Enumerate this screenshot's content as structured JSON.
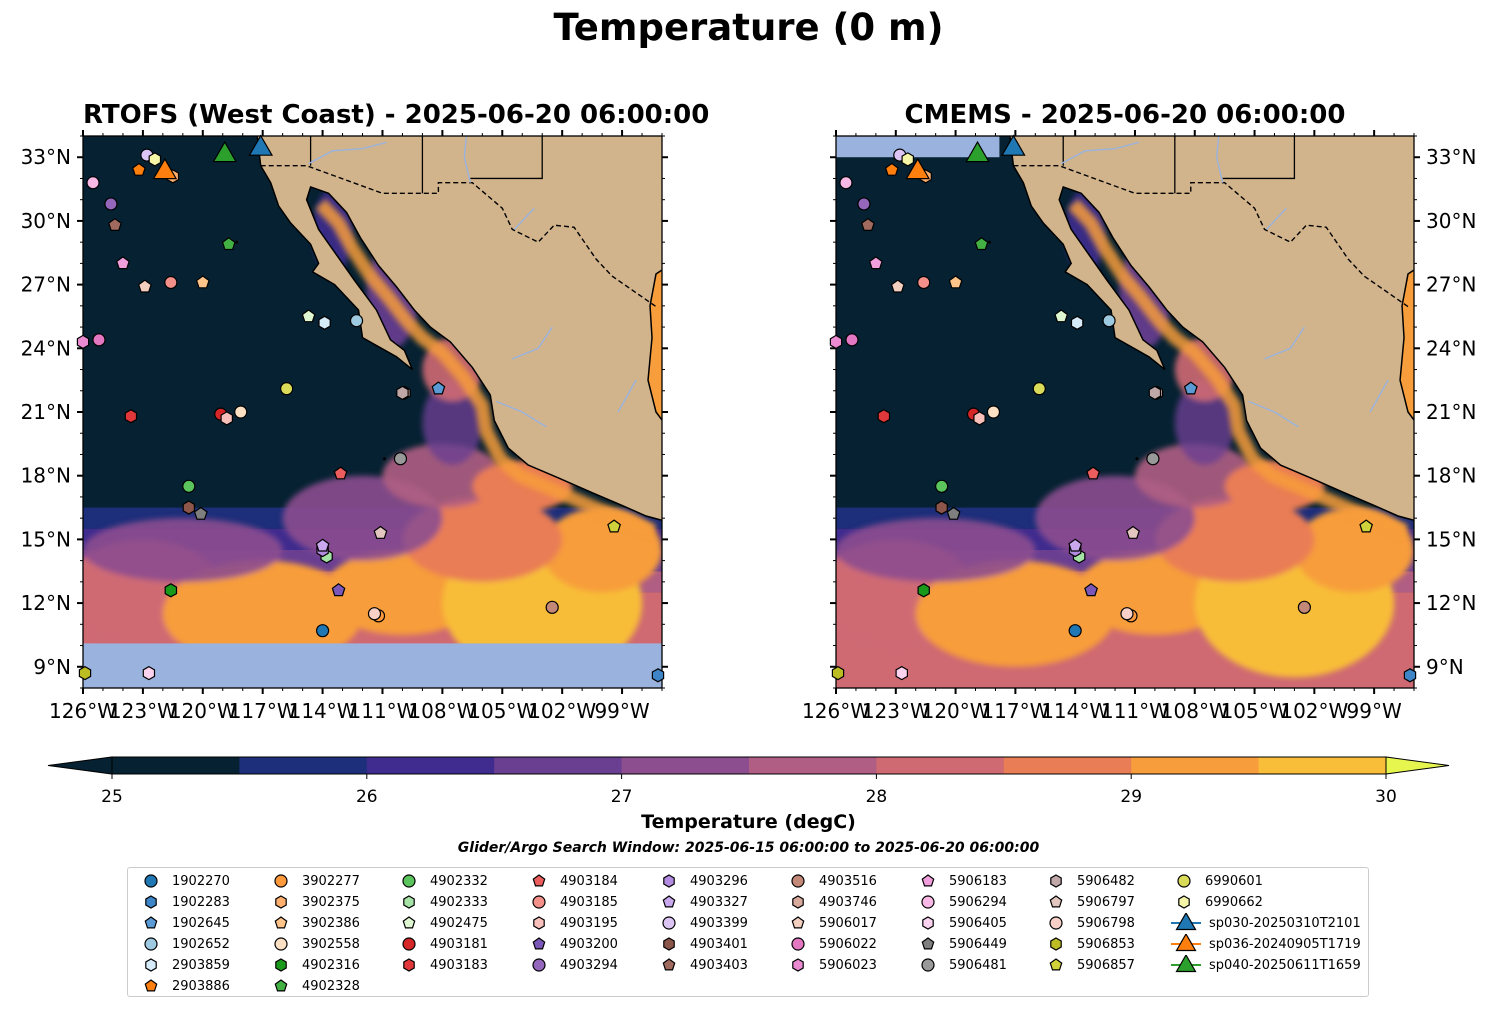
{
  "title": "Temperature (0 m)",
  "panels": [
    {
      "title": "RTOFS (West Coast) - 2025-06-20 06:00:00"
    },
    {
      "title": "CMEMS - 2025-06-20 06:00:00"
    }
  ],
  "map": {
    "lon_range": [
      -126,
      -97
    ],
    "lat_range": [
      8,
      34
    ],
    "lon_ticks": [
      "126°W",
      "123°W",
      "120°W",
      "117°W",
      "114°W",
      "111°W",
      "108°W",
      "105°W",
      "102°W",
      "99°W"
    ],
    "lat_ticks": [
      "9°N",
      "12°N",
      "15°N",
      "18°N",
      "21°N",
      "24°N",
      "27°N",
      "30°N",
      "33°N"
    ],
    "colors": {
      "ocean_dark": "#062232",
      "land": "#d2b48c",
      "nodata": "#99b3de",
      "coast": "#000000",
      "river": "#99b3de"
    }
  },
  "colorbar": {
    "label": "Temperature (degC)",
    "ticks": [
      "25",
      "26",
      "27",
      "28",
      "29",
      "30"
    ],
    "colors": [
      "#062232",
      "#1d2e7a",
      "#3f2c8e",
      "#6a3f92",
      "#8c4e8f",
      "#b05e83",
      "#cf6a73",
      "#e97d55",
      "#f79d3b",
      "#f8bd39"
    ],
    "under_color": "#062232",
    "over_color": "#e6f64f"
  },
  "subtitle": "Glider/Argo Search Window: 2025-06-15 06:00:00 to 2025-06-20 06:00:00",
  "legend": [
    {
      "label": "1902270",
      "marker": "circle",
      "color": "#1f77b4"
    },
    {
      "label": "1902283",
      "marker": "hexagon",
      "color": "#3d85c6"
    },
    {
      "label": "1902645",
      "marker": "pentagon",
      "color": "#5b9bd5"
    },
    {
      "label": "1902652",
      "marker": "circle",
      "color": "#9ecae1"
    },
    {
      "label": "2903859",
      "marker": "hexagon",
      "color": "#d6ecfb"
    },
    {
      "label": "2903886",
      "marker": "pentagon",
      "color": "#ff7f0e"
    },
    {
      "label": "3902277",
      "marker": "circle",
      "color": "#ff9a3c"
    },
    {
      "label": "3902375",
      "marker": "hexagon",
      "color": "#ffb06e"
    },
    {
      "label": "3902386",
      "marker": "pentagon",
      "color": "#ffc48a"
    },
    {
      "label": "3902558",
      "marker": "circle",
      "color": "#fbe0c4"
    },
    {
      "label": "4902316",
      "marker": "hexagon",
      "color": "#1a9a1a"
    },
    {
      "label": "4902328",
      "marker": "pentagon",
      "color": "#43b043"
    },
    {
      "label": "4902332",
      "marker": "circle",
      "color": "#5cc45c"
    },
    {
      "label": "4902333",
      "marker": "hexagon",
      "color": "#a6e3a6"
    },
    {
      "label": "4902475",
      "marker": "pentagon",
      "color": "#dff7d0"
    },
    {
      "label": "4903181",
      "marker": "circle",
      "color": "#d62728"
    },
    {
      "label": "4903183",
      "marker": "hexagon",
      "color": "#e0383a"
    },
    {
      "label": "4903184",
      "marker": "pentagon",
      "color": "#ec5e5e"
    },
    {
      "label": "4903185",
      "marker": "circle",
      "color": "#f4908a"
    },
    {
      "label": "4903195",
      "marker": "hexagon",
      "color": "#f9c0bb"
    },
    {
      "label": "4903200",
      "marker": "pentagon",
      "color": "#7b58b8"
    },
    {
      "label": "4903294",
      "marker": "circle",
      "color": "#9467bd"
    },
    {
      "label": "4903296",
      "marker": "hexagon",
      "color": "#b38be0"
    },
    {
      "label": "4903327",
      "marker": "pentagon",
      "color": "#c9a8ee"
    },
    {
      "label": "4903399",
      "marker": "circle",
      "color": "#dcc4f5"
    },
    {
      "label": "4903401",
      "marker": "hexagon",
      "color": "#8c564b"
    },
    {
      "label": "4903403",
      "marker": "pentagon",
      "color": "#a06a5e"
    },
    {
      "label": "4903516",
      "marker": "circle",
      "color": "#c48878"
    },
    {
      "label": "4903746",
      "marker": "hexagon",
      "color": "#d8aa9c"
    },
    {
      "label": "5906017",
      "marker": "pentagon",
      "color": "#f3cfc0"
    },
    {
      "label": "5906022",
      "marker": "circle",
      "color": "#e377c2"
    },
    {
      "label": "5906023",
      "marker": "hexagon",
      "color": "#ea8ad0"
    },
    {
      "label": "5906183",
      "marker": "pentagon",
      "color": "#f19fdc"
    },
    {
      "label": "5906294",
      "marker": "circle",
      "color": "#f7b8e6"
    },
    {
      "label": "5906405",
      "marker": "hexagon",
      "color": "#fbd3ef"
    },
    {
      "label": "5906449",
      "marker": "pentagon",
      "color": "#7f7f7f"
    },
    {
      "label": "5906481",
      "marker": "circle",
      "color": "#999999"
    },
    {
      "label": "5906482",
      "marker": "hexagon",
      "color": "#c0a8a8"
    },
    {
      "label": "5906797",
      "marker": "pentagon",
      "color": "#e4c6c0"
    },
    {
      "label": "5906798",
      "marker": "circle",
      "color": "#f8d0c8"
    },
    {
      "label": "5906853",
      "marker": "hexagon",
      "color": "#bcbd22"
    },
    {
      "label": "5906857",
      "marker": "pentagon",
      "color": "#cfd23a"
    },
    {
      "label": "6990601",
      "marker": "circle",
      "color": "#dbdb5a"
    },
    {
      "label": "6990662",
      "marker": "hexagon",
      "color": "#f5f5a8"
    },
    {
      "label": "sp030-20250310T2101",
      "marker": "triangle",
      "color": "#1f77b4"
    },
    {
      "label": "sp036-20240905T1719",
      "marker": "triangle",
      "color": "#ff7f0e"
    },
    {
      "label": "sp040-20250611T1659",
      "marker": "triangle",
      "color": "#2ca02c"
    }
  ],
  "markers": [
    {
      "id": "1902270",
      "lon": -114.0,
      "lat": 10.7
    },
    {
      "id": "1902283",
      "lon": -97.2,
      "lat": 8.6
    },
    {
      "id": "1902645",
      "lon": -108.2,
      "lat": 22.1
    },
    {
      "id": "1902652",
      "lon": -112.3,
      "lat": 25.3
    },
    {
      "id": "2903859",
      "lon": -113.9,
      "lat": 25.2
    },
    {
      "id": "2903886",
      "lon": -123.2,
      "lat": 32.4
    },
    {
      "id": "3902277",
      "lon": -111.2,
      "lat": 11.4
    },
    {
      "id": "3902375",
      "lon": -121.5,
      "lat": 32.1
    },
    {
      "id": "3902386",
      "lon": -120.0,
      "lat": 27.1
    },
    {
      "id": "3902558",
      "lon": -118.1,
      "lat": 21.0
    },
    {
      "id": "4902316",
      "lon": -121.6,
      "lat": 12.6
    },
    {
      "id": "4902328",
      "lon": -118.7,
      "lat": 28.9
    },
    {
      "id": "4902332",
      "lon": -120.7,
      "lat": 17.5
    },
    {
      "id": "4902333",
      "lon": -113.8,
      "lat": 14.2
    },
    {
      "id": "4902475",
      "lon": -114.7,
      "lat": 25.5
    },
    {
      "id": "4903181",
      "lon": -119.1,
      "lat": 20.9
    },
    {
      "id": "4903183",
      "lon": -123.6,
      "lat": 20.8
    },
    {
      "id": "4903184",
      "lon": -113.1,
      "lat": 18.1
    },
    {
      "id": "4903185",
      "lon": -121.6,
      "lat": 27.1
    },
    {
      "id": "4903195",
      "lon": -118.8,
      "lat": 20.7
    },
    {
      "id": "4903200",
      "lon": -113.2,
      "lat": 12.6
    },
    {
      "id": "4903294",
      "lon": -124.6,
      "lat": 30.8
    },
    {
      "id": "4903296",
      "lon": -114.0,
      "lat": 14.5
    },
    {
      "id": "4903327",
      "lon": -114.0,
      "lat": 14.7
    },
    {
      "id": "4903399",
      "lon": -122.8,
      "lat": 33.1
    },
    {
      "id": "4903401",
      "lon": -120.7,
      "lat": 16.5
    },
    {
      "id": "4903403",
      "lon": -124.4,
      "lat": 29.8
    },
    {
      "id": "4903516",
      "lon": -102.5,
      "lat": 11.8
    },
    {
      "id": "4903746",
      "lon": -109.9,
      "lat": 21.9
    },
    {
      "id": "5906017",
      "lon": -122.9,
      "lat": 26.9
    },
    {
      "id": "5906022",
      "lon": -125.2,
      "lat": 24.4
    },
    {
      "id": "5906023",
      "lon": -126.0,
      "lat": 24.3
    },
    {
      "id": "5906183",
      "lon": -124.0,
      "lat": 28.0
    },
    {
      "id": "5906294",
      "lon": -125.5,
      "lat": 31.8
    },
    {
      "id": "5906405",
      "lon": -122.7,
      "lat": 8.7
    },
    {
      "id": "5906449",
      "lon": -120.1,
      "lat": 16.2
    },
    {
      "id": "5906481",
      "lon": -110.1,
      "lat": 18.8
    },
    {
      "id": "5906482",
      "lon": -110.0,
      "lat": 21.9
    },
    {
      "id": "5906797",
      "lon": -111.1,
      "lat": 15.3
    },
    {
      "id": "5906798",
      "lon": -111.4,
      "lat": 11.5
    },
    {
      "id": "5906853",
      "lon": -125.9,
      "lat": 8.7
    },
    {
      "id": "5906857",
      "lon": -99.4,
      "lat": 15.6
    },
    {
      "id": "6990601",
      "lon": -115.8,
      "lat": 22.1
    },
    {
      "id": "6990662",
      "lon": -122.4,
      "lat": 32.9
    },
    {
      "id": "sp030-20250310T2101",
      "lon": -117.1,
      "lat": 33.4
    },
    {
      "id": "sp036-20240905T1719",
      "lon": -121.9,
      "lat": 32.3
    },
    {
      "id": "sp040-20250611T1659",
      "lon": -118.9,
      "lat": 33.1
    }
  ]
}
